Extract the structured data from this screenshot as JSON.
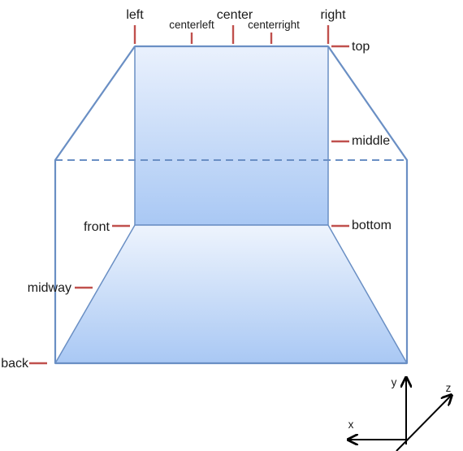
{
  "labels": {
    "left": "left",
    "center": "center",
    "right": "right",
    "centerleft": "centerleft",
    "centerright": "centerright",
    "top": "top",
    "middle": "middle",
    "bottom": "bottom",
    "front": "front",
    "midway": "midway",
    "back": "back"
  },
  "axes": {
    "x": "x",
    "y": "y",
    "z": "z"
  },
  "colors": {
    "tick": "#c0504d",
    "edge": "#6a8fc4",
    "fill_light": "#eaf1fd",
    "fill_dark": "#a9c8f4",
    "axis": "#000000"
  }
}
